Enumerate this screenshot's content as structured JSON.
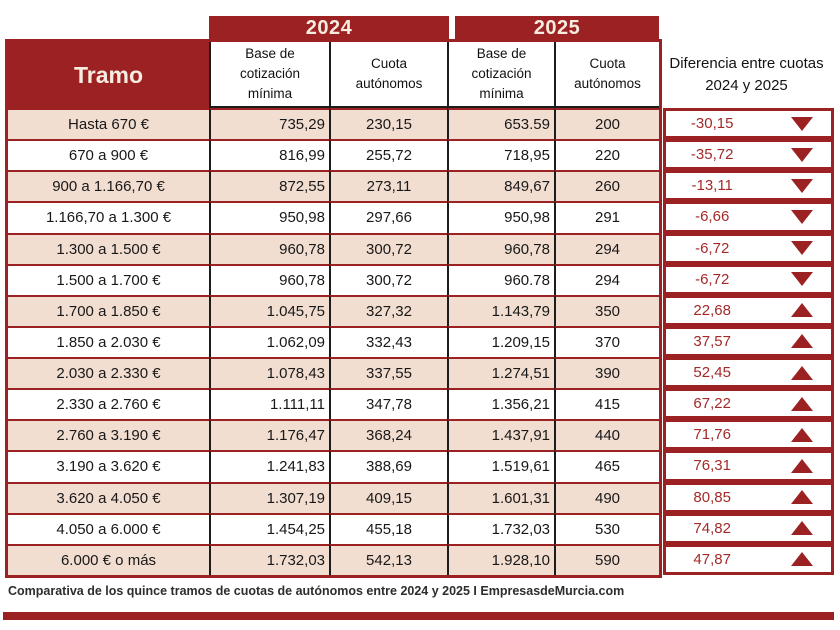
{
  "table": {
    "tramo_header": "Tramo",
    "year_2024": "2024",
    "year_2025": "2025",
    "sub_base": "Base de cotización mínima",
    "sub_cuota": "Cuota autónomos",
    "diff_header_line1": "Diferencia entre cuotas",
    "diff_header_line2": "2024 y 2025"
  },
  "footer": {
    "caption": "Comparativa de los quince tramos de cuotas de autónomos entre 2024 y 2025 I EmpresasdeMurcia.com"
  },
  "colors": {
    "dark_red": "#9C2123",
    "row_pink": "#F2DED1",
    "header_text_cream": "#F7ECE0",
    "diff_value_red": "#A32A2A"
  },
  "chart_data": {
    "type": "table",
    "title": "Comparativa de los quince tramos de cuotas de autónomos entre 2024 y 2025",
    "columns": [
      "Tramo",
      "2024 Base de cotización mínima",
      "2024 Cuota autónomos",
      "2025 Base de cotización mínima",
      "2025 Cuota autónomos",
      "Diferencia entre cuotas 2024 y 2025"
    ],
    "rows": [
      {
        "tramo": "Hasta 670 €",
        "base_2024": "735,29",
        "cuota_2024": "230,15",
        "base_2025": "653.59",
        "cuota_2025": "200",
        "diferencia": "-30,15",
        "trend": "down"
      },
      {
        "tramo": "670 a 900 €",
        "base_2024": "816,99",
        "cuota_2024": "255,72",
        "base_2025": "718,95",
        "cuota_2025": "220",
        "diferencia": "-35,72",
        "trend": "down"
      },
      {
        "tramo": "900 a 1.166,70 €",
        "base_2024": "872,55",
        "cuota_2024": "273,11",
        "base_2025": "849,67",
        "cuota_2025": "260",
        "diferencia": "-13,11",
        "trend": "down"
      },
      {
        "tramo": "1.166,70 a 1.300 €",
        "base_2024": "950,98",
        "cuota_2024": "297,66",
        "base_2025": "950,98",
        "cuota_2025": "291",
        "diferencia": "-6,66",
        "trend": "down"
      },
      {
        "tramo": "1.300 a 1.500 €",
        "base_2024": "960,78",
        "cuota_2024": "300,72",
        "base_2025": "960,78",
        "cuota_2025": "294",
        "diferencia": "-6,72",
        "trend": "down"
      },
      {
        "tramo": "1.500 a 1.700 €",
        "base_2024": "960,78",
        "cuota_2024": "300,72",
        "base_2025": "960.78",
        "cuota_2025": "294",
        "diferencia": "-6,72",
        "trend": "down"
      },
      {
        "tramo": "1.700 a 1.850 €",
        "base_2024": "1.045,75",
        "cuota_2024": "327,32",
        "base_2025": "1.143,79",
        "cuota_2025": "350",
        "diferencia": "22,68",
        "trend": "up"
      },
      {
        "tramo": "1.850 a 2.030 €",
        "base_2024": "1.062,09",
        "cuota_2024": "332,43",
        "base_2025": "1.209,15",
        "cuota_2025": "370",
        "diferencia": "37,57",
        "trend": "up"
      },
      {
        "tramo": "2.030 a 2.330 €",
        "base_2024": "1.078,43",
        "cuota_2024": "337,55",
        "base_2025": "1.274,51",
        "cuota_2025": "390",
        "diferencia": "52,45",
        "trend": "up"
      },
      {
        "tramo": "2.330 a 2.760 €",
        "base_2024": "1.111,11",
        "cuota_2024": "347,78",
        "base_2025": "1.356,21",
        "cuota_2025": "415",
        "diferencia": "67,22",
        "trend": "up"
      },
      {
        "tramo": "2.760 a 3.190 €",
        "base_2024": "1.176,47",
        "cuota_2024": "368,24",
        "base_2025": "1.437,91",
        "cuota_2025": "440",
        "diferencia": "71,76",
        "trend": "up"
      },
      {
        "tramo": "3.190 a 3.620 €",
        "base_2024": "1.241,83",
        "cuota_2024": "388,69",
        "base_2025": "1.519,61",
        "cuota_2025": "465",
        "diferencia": "76,31",
        "trend": "up"
      },
      {
        "tramo": "3.620 a 4.050 €",
        "base_2024": "1.307,19",
        "cuota_2024": "409,15",
        "base_2025": "1.601,31",
        "cuota_2025": "490",
        "diferencia": "80,85",
        "trend": "up"
      },
      {
        "tramo": "4.050 a 6.000 €",
        "base_2024": "1.454,25",
        "cuota_2024": "455,18",
        "base_2025": "1.732,03",
        "cuota_2025": "530",
        "diferencia": "74,82",
        "trend": "up"
      },
      {
        "tramo": "6.000 € o más",
        "base_2024": "1.732,03",
        "cuota_2024": "542,13",
        "base_2025": "1.928,10",
        "cuota_2025": "590",
        "diferencia": "47,87",
        "trend": "up"
      }
    ]
  }
}
